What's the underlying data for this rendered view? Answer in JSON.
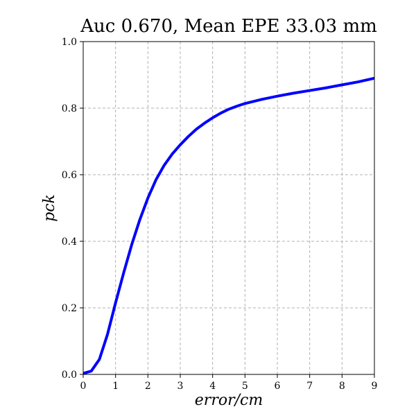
{
  "chart_data": {
    "type": "line",
    "title": "Auc 0.670, Mean EPE 33.03 mm",
    "xlabel": "error/cm",
    "ylabel": "pck",
    "xlim": [
      0,
      9
    ],
    "ylim": [
      0,
      1.0
    ],
    "xticks": [
      0,
      1,
      2,
      3,
      4,
      5,
      6,
      7,
      8,
      9
    ],
    "yticks": [
      0.0,
      0.2,
      0.4,
      0.6,
      0.8,
      1.0
    ],
    "xtick_labels": [
      "0",
      "1",
      "2",
      "3",
      "4",
      "5",
      "6",
      "7",
      "8",
      "9"
    ],
    "ytick_labels": [
      "0.0",
      "0.2",
      "0.4",
      "0.6",
      "0.8",
      "1.0"
    ],
    "grid": true,
    "series": [
      {
        "color": "#0000ff",
        "x": [
          0,
          0.25,
          0.5,
          0.75,
          1.0,
          1.25,
          1.5,
          1.75,
          2.0,
          2.25,
          2.5,
          2.75,
          3.0,
          3.25,
          3.5,
          3.75,
          4.0,
          4.25,
          4.5,
          4.75,
          5.0,
          5.5,
          6.0,
          6.5,
          7.0,
          7.5,
          8.0,
          8.5,
          9.0
        ],
        "y": [
          0.003,
          0.01,
          0.045,
          0.12,
          0.215,
          0.305,
          0.39,
          0.465,
          0.53,
          0.585,
          0.628,
          0.662,
          0.69,
          0.715,
          0.737,
          0.755,
          0.771,
          0.785,
          0.797,
          0.806,
          0.814,
          0.826,
          0.836,
          0.845,
          0.853,
          0.861,
          0.87,
          0.879,
          0.89
        ]
      }
    ]
  }
}
